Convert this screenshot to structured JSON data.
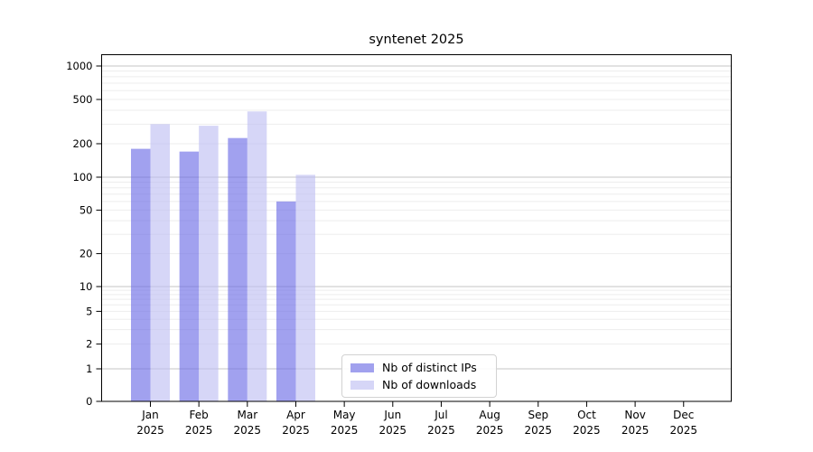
{
  "chart_data": {
    "type": "bar",
    "title": "syntenet 2025",
    "categories": [
      "Jan 2025",
      "Feb 2025",
      "Mar 2025",
      "Apr 2025",
      "May 2025",
      "Jun 2025",
      "Jul 2025",
      "Aug 2025",
      "Sep 2025",
      "Oct 2025",
      "Nov 2025",
      "Dec 2025"
    ],
    "series": [
      {
        "name": "Nb of distinct IPs",
        "color": "#a1a1ee",
        "fill": "rgba(103,103,229,0.62)",
        "values": [
          180,
          170,
          225,
          60,
          0,
          0,
          0,
          0,
          0,
          0,
          0,
          0
        ]
      },
      {
        "name": "Nb of downloads",
        "color": "#d6d6f7",
        "fill": "rgba(189,189,242,0.62)",
        "values": [
          300,
          290,
          390,
          105,
          0,
          0,
          0,
          0,
          0,
          0,
          0,
          0
        ]
      }
    ],
    "y_axis": {
      "scale": "symlog",
      "ticks": [
        0,
        1,
        2,
        5,
        10,
        20,
        50,
        100,
        200,
        500,
        1000
      ],
      "major_gridlines": [
        1,
        10,
        100,
        1000
      ],
      "minor_gridlines": [
        2,
        3,
        4,
        5,
        6,
        7,
        8,
        9,
        20,
        30,
        40,
        50,
        60,
        70,
        80,
        90,
        200,
        300,
        400,
        500,
        600,
        700,
        800,
        900
      ],
      "ylim": [
        0,
        1320
      ]
    },
    "grid": {
      "major_color": "#c6c6c6",
      "minor_color": "#ededed"
    },
    "legend": {
      "position": "lower center"
    }
  }
}
